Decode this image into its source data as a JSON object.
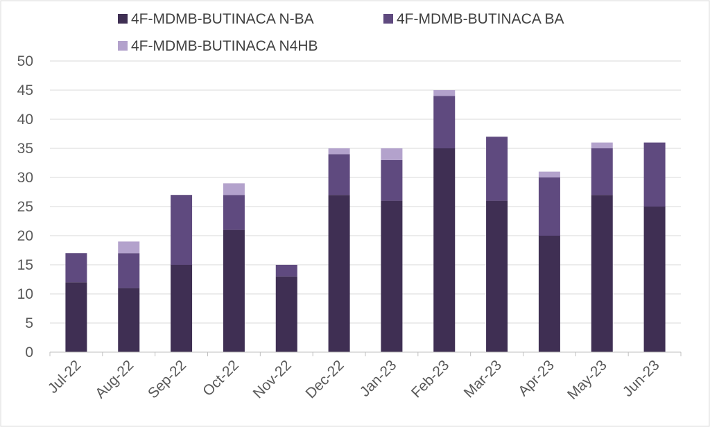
{
  "chart_data": {
    "type": "bar",
    "stacked": true,
    "categories": [
      "Jul-22",
      "Aug-22",
      "Sep-22",
      "Oct-22",
      "Nov-22",
      "Dec-22",
      "Jan-23",
      "Feb-23",
      "Mar-23",
      "Apr-23",
      "May-23",
      "Jun-23"
    ],
    "series": [
      {
        "name": "4F-MDMB-BUTINACA N-BA",
        "color": "#3f2f53",
        "values": [
          12,
          11,
          15,
          21,
          13,
          27,
          26,
          35,
          26,
          20,
          27,
          25
        ]
      },
      {
        "name": "4F-MDMB-BUTINACA BA",
        "color": "#5f4a7f",
        "values": [
          5,
          6,
          12,
          6,
          2,
          7,
          7,
          9,
          11,
          10,
          8,
          11
        ]
      },
      {
        "name": "4F-MDMB-BUTINACA N4HB",
        "color": "#b3a2cc",
        "values": [
          0,
          2,
          0,
          2,
          0,
          1,
          2,
          1,
          0,
          1,
          1,
          0
        ]
      }
    ],
    "ylim": [
      0,
      50
    ],
    "yticks": [
      "0",
      "5",
      "10",
      "15",
      "20",
      "25",
      "30",
      "35",
      "40",
      "45",
      "50"
    ],
    "grid": true,
    "legend_position": "top"
  }
}
